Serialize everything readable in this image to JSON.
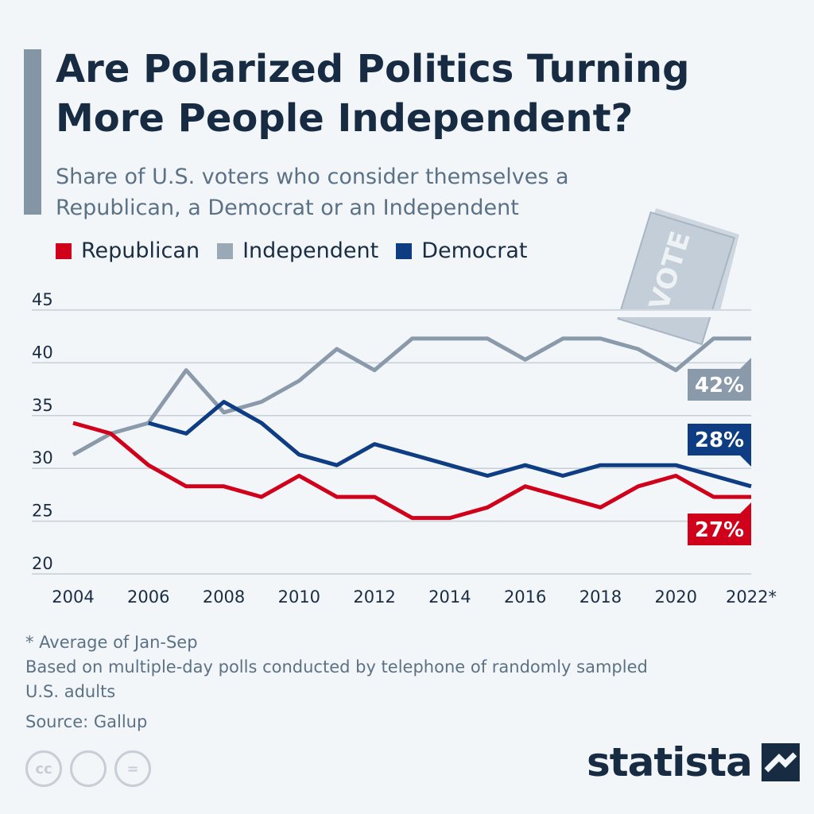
{
  "header": {
    "title": "Are Polarized Politics Turning More People Independent?",
    "subtitle": "Share of U.S. voters who consider themselves a Republican, a Democrat or an Independent"
  },
  "legend": [
    {
      "label": "Republican",
      "color": "#d0021b"
    },
    {
      "label": "Independent",
      "color": "#9aa9b6"
    },
    {
      "label": "Democrat",
      "color": "#0f3d84"
    }
  ],
  "decoration": {
    "ballot_text": "VOTE"
  },
  "chart_data": {
    "type": "line",
    "x": [
      "2004",
      "2005",
      "2006",
      "2007",
      "2008",
      "2009",
      "2010",
      "2011",
      "2012",
      "2013",
      "2014",
      "2015",
      "2016",
      "2017",
      "2018",
      "2019",
      "2020",
      "2021",
      "2022*"
    ],
    "x_tick_labels": [
      "2004",
      "2006",
      "2008",
      "2010",
      "2012",
      "2014",
      "2016",
      "2018",
      "2020",
      "2022*"
    ],
    "ylim": [
      20,
      45
    ],
    "y_ticks": [
      20,
      25,
      30,
      35,
      40,
      45
    ],
    "grid": true,
    "legend_position": "top-left",
    "series": [
      {
        "name": "Republican",
        "color": "#d0021b",
        "values": [
          34.3,
          33.3,
          30.3,
          28.3,
          28.3,
          27.3,
          29.3,
          27.3,
          27.3,
          25.3,
          25.3,
          26.3,
          28.3,
          27.3,
          26.3,
          28.3,
          29.3,
          27.3,
          27.3
        ],
        "end_label": "27%"
      },
      {
        "name": "Independent",
        "color": "#8a9aab",
        "values": [
          31.3,
          33.3,
          34.3,
          39.3,
          35.3,
          36.3,
          38.3,
          41.3,
          39.3,
          42.3,
          42.3,
          42.3,
          40.3,
          42.3,
          42.3,
          41.3,
          39.3,
          42.3,
          42.3
        ],
        "end_label": "42%"
      },
      {
        "name": "Democrat",
        "color": "#0f3d84",
        "values": [
          null,
          null,
          34.3,
          33.3,
          36.3,
          34.3,
          31.3,
          30.3,
          32.3,
          31.3,
          30.3,
          29.3,
          30.3,
          29.3,
          30.3,
          30.3,
          30.3,
          29.3,
          28.3
        ],
        "end_label": "28%"
      }
    ]
  },
  "footer": {
    "note": "* Average of Jan-Sep",
    "method": "Based on multiple-day polls conducted by telephone of randomly sampled U.S. adults",
    "source": "Source: Gallup",
    "cc_icons": [
      "cc-icon",
      "attribution-icon",
      "noderivs-icon"
    ],
    "cc_symbols": [
      "cc",
      " ",
      "="
    ],
    "brand": "statista"
  }
}
